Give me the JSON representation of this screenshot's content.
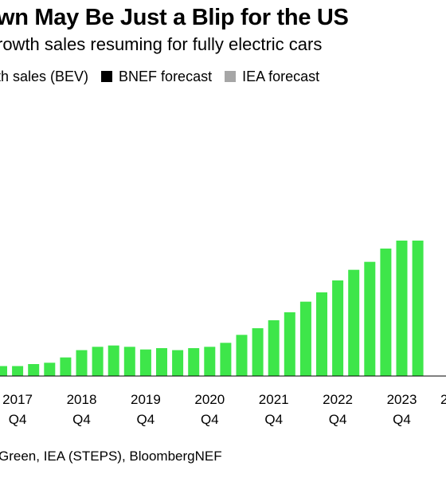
{
  "header": {
    "title": "wn May Be Just a Blip for the US",
    "subtitle": "rowth sales resuming for fully electric cars"
  },
  "legend": {
    "items": [
      {
        "label": "th sales (BEV)",
        "color": "#3ee64a"
      },
      {
        "label": "BNEF forecast",
        "color": "#000000"
      },
      {
        "label": "IEA forecast",
        "color": "#a6a6a6"
      }
    ]
  },
  "source": {
    "text": "Green, IEA (STEPS), BloombergNEF"
  },
  "chart_data": {
    "type": "bar",
    "title": "",
    "xlabel": "",
    "ylabel": "",
    "ylim": [
      0,
      100
    ],
    "x_ticks": [
      {
        "year": "2017",
        "quarter": "Q4",
        "index": 1
      },
      {
        "year": "2018",
        "quarter": "Q4",
        "index": 5
      },
      {
        "year": "2019",
        "quarter": "Q4",
        "index": 9
      },
      {
        "year": "2020",
        "quarter": "Q4",
        "index": 13
      },
      {
        "year": "2021",
        "quarter": "Q4",
        "index": 17
      },
      {
        "year": "2022",
        "quarter": "Q4",
        "index": 21
      },
      {
        "year": "2023",
        "quarter": "Q4",
        "index": 25
      }
    ],
    "partial_tick_label": "2",
    "series": [
      {
        "name": "th sales (BEV)",
        "color": "#3ee64a",
        "values": [
          7.5,
          7.5,
          9,
          10,
          14,
          19.5,
          22,
          23,
          22,
          20,
          21,
          19.5,
          21,
          22,
          25,
          31,
          36,
          42,
          48,
          56,
          63,
          72,
          80,
          86,
          96,
          102,
          102
        ]
      }
    ]
  }
}
